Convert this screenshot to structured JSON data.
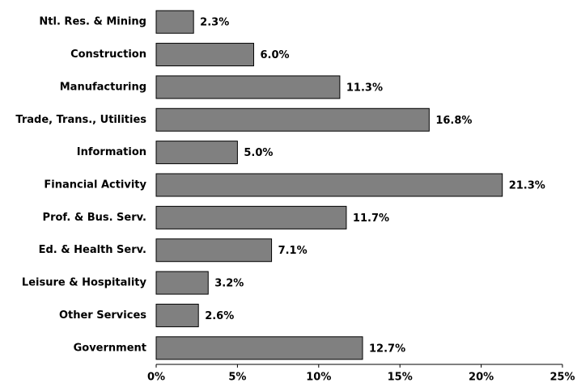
{
  "chart_data": {
    "type": "bar",
    "orientation": "horizontal",
    "categories": [
      "Ntl. Res. & Mining",
      "Construction",
      "Manufacturing",
      "Trade, Trans., Utilities",
      "Information",
      "Financial Activity",
      "Prof. & Bus. Serv.",
      "Ed. & Health Serv.",
      "Leisure & Hospitality",
      "Other Services",
      "Government"
    ],
    "values": [
      2.3,
      6.0,
      11.3,
      16.8,
      5.0,
      21.3,
      11.7,
      7.1,
      3.2,
      2.6,
      12.7
    ],
    "value_labels": [
      "2.3%",
      "6.0%",
      "11.3%",
      "16.8%",
      "5.0%",
      "21.3%",
      "11.7%",
      "7.1%",
      "3.2%",
      "2.6%",
      "12.7%"
    ],
    "color": "#808080",
    "xlim": [
      0,
      25
    ],
    "xticks": [
      {
        "value": 0,
        "label": "0%"
      },
      {
        "value": 5,
        "label": "5%"
      },
      {
        "value": 10,
        "label": "10%"
      },
      {
        "value": 15,
        "label": "15%"
      },
      {
        "value": 20,
        "label": "20%"
      },
      {
        "value": 25,
        "label": "25%"
      }
    ],
    "grid": false
  }
}
